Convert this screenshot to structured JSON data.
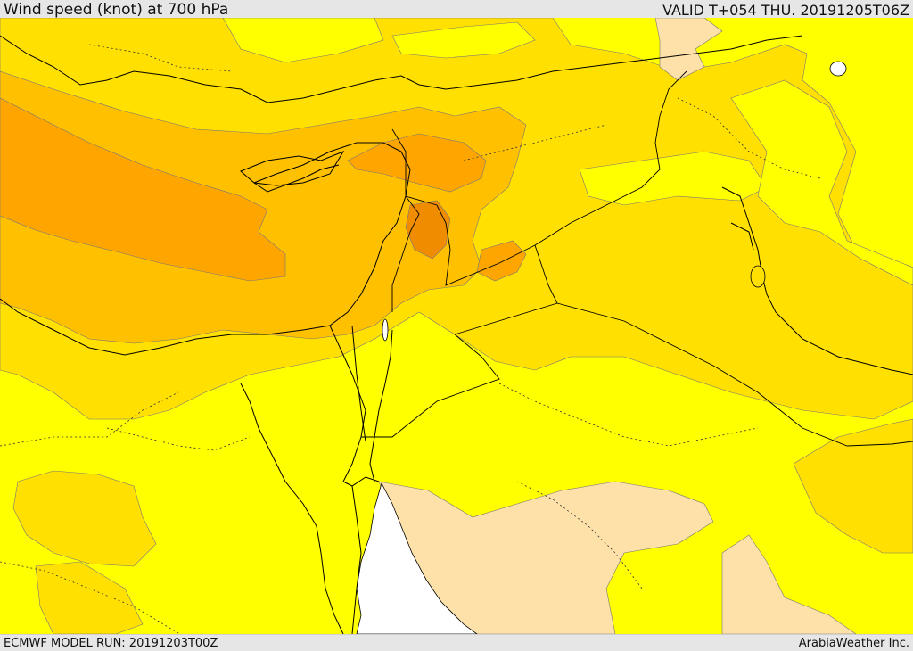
{
  "header": {
    "title": "Wind speed (knot) at 700 hPa",
    "valid_time": "VALID T+054 THU. 20191205T06Z"
  },
  "footer": {
    "model_run": "ECMWF MODEL RUN: 20191203T00Z",
    "credit": "ArabiaWeather Inc."
  },
  "map": {
    "variable": "wind speed at 700 hPa",
    "fill_colors": {
      "lowest": "#fde1a9",
      "low": "#ffff00",
      "medium": "#ffe000",
      "high": "#ffc000",
      "higher": "#ffa500",
      "highest": "#f08c00",
      "sea_no_data": "#ffffff"
    },
    "boundary_color": "#000000"
  }
}
